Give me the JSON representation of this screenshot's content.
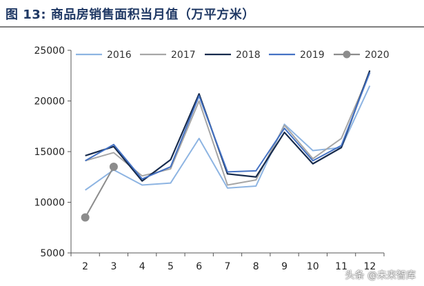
{
  "header": {
    "title": "图 13:  商品房销售面积当月值（万平方米）"
  },
  "watermark": "头条 @未来智库",
  "chart_data": {
    "type": "line",
    "title": "图 13:  商品房销售面积当月值（万平方米）",
    "xlabel": "",
    "ylabel": "",
    "x": [
      "2",
      "3",
      "4",
      "5",
      "6",
      "7",
      "8",
      "9",
      "10",
      "11",
      "12"
    ],
    "ylim": [
      5000,
      25000
    ],
    "yticks": [
      5000,
      10000,
      15000,
      20000,
      25000
    ],
    "grid": false,
    "legend": "top",
    "series": [
      {
        "name": "2016",
        "color": "#8db4e2",
        "values": [
          11200,
          13200,
          11700,
          11900,
          16300,
          11400,
          11600,
          17700,
          15100,
          15400,
          21500
        ]
      },
      {
        "name": "2017",
        "color": "#a6a6a6",
        "values": [
          14100,
          14900,
          12600,
          13300,
          20000,
          11700,
          12200,
          17600,
          14300,
          16300,
          22800
        ]
      },
      {
        "name": "2018",
        "color": "#172b4d",
        "values": [
          14600,
          15500,
          12100,
          14200,
          20700,
          12800,
          12500,
          16900,
          13800,
          15400,
          23000
        ]
      },
      {
        "name": "2019",
        "color": "#4472c4",
        "values": [
          14100,
          15700,
          12300,
          13500,
          20500,
          13000,
          13100,
          17300,
          14100,
          15600,
          22800
        ]
      },
      {
        "name": "2020",
        "color": "#8c8c8c",
        "marker": "circle",
        "values": [
          8500,
          13500,
          null,
          null,
          null,
          null,
          null,
          null,
          null,
          null,
          null
        ]
      }
    ]
  }
}
